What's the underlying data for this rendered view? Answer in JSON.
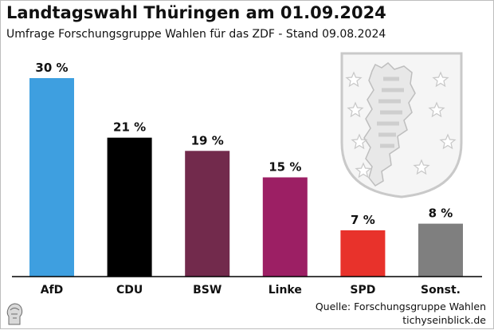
{
  "header": {
    "title": "Landtagswahl Thüringen am 01.09.2024",
    "subtitle": "Umfrage Forschungsgruppe Wahlen für das ZDF - Stand 09.08.2024"
  },
  "footer": {
    "source": "Quelle: Forschungsgruppe Wahlen",
    "site": "tichyseinblick.de"
  },
  "chart_data": {
    "type": "bar",
    "title": "Landtagswahl Thüringen am 01.09.2024",
    "subtitle": "Umfrage Forschungsgruppe Wahlen für das ZDF - Stand 09.08.2024",
    "categories": [
      "AfD",
      "CDU",
      "BSW",
      "Linke",
      "SPD",
      "Sonst."
    ],
    "values": [
      30,
      21,
      19,
      15,
      7,
      8
    ],
    "value_labels": [
      "30 %",
      "21 %",
      "19 %",
      "15 %",
      "7 %",
      "8 %"
    ],
    "colors": [
      "#3e9fe0",
      "#000000",
      "#722a4c",
      "#9c1f64",
      "#e8322b",
      "#7f7f7f"
    ],
    "unit": "%",
    "xlabel": "",
    "ylabel": "",
    "ylim": [
      0,
      30
    ],
    "grid": false,
    "legend": "none"
  }
}
